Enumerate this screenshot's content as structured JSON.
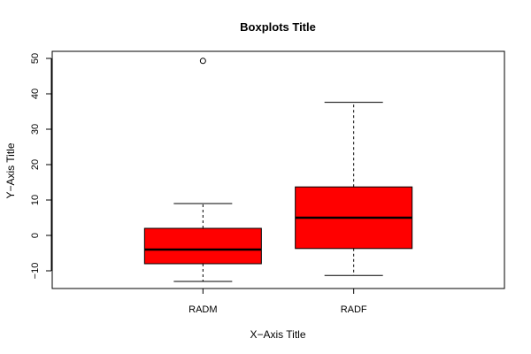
{
  "chart_data": {
    "type": "boxplot",
    "title": "Boxplots Title",
    "xlabel": "X−Axis Title",
    "ylabel": "Y−Axis Title",
    "ylim": [
      -15,
      52
    ],
    "yticks": [
      -10,
      0,
      10,
      20,
      30,
      40,
      50
    ],
    "ytick_labels": [
      "−10",
      "0",
      "10",
      "20",
      "30",
      "40",
      "50"
    ],
    "grid": false,
    "fill_color": "#ff0000",
    "categories": [
      "RADM",
      "RADF"
    ],
    "boxes": [
      {
        "name": "RADM",
        "whisker_low": -13,
        "q1": -8,
        "median": -4,
        "q3": 2,
        "whisker_high": 9,
        "outliers": [
          49.3
        ]
      },
      {
        "name": "RADF",
        "whisker_low": -11.3,
        "q1": -3.7,
        "median": 5,
        "q3": 13.7,
        "whisker_high": 37.6,
        "outliers": []
      }
    ]
  }
}
